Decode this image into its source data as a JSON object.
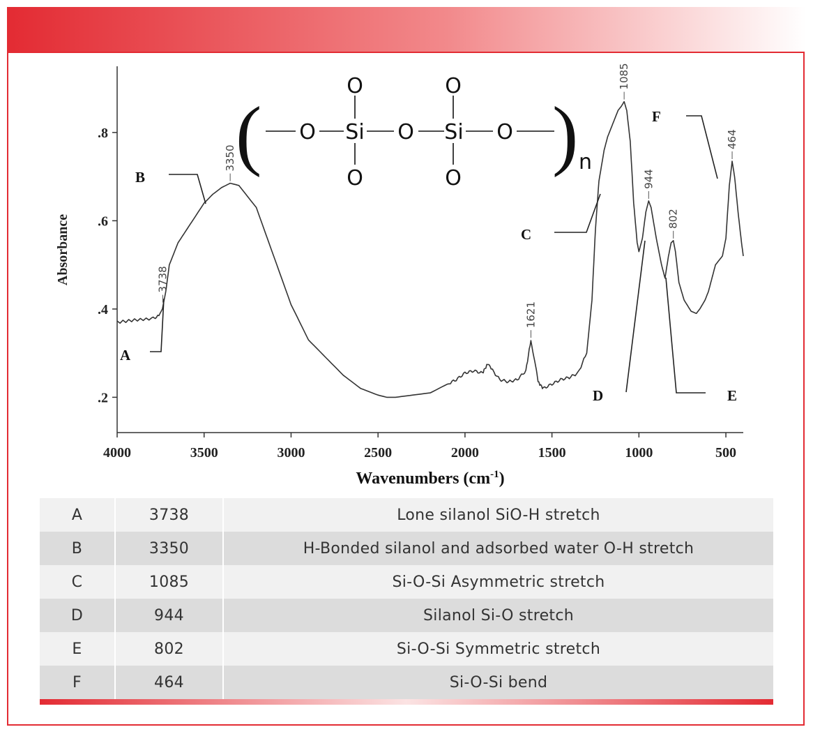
{
  "colors": {
    "accent": "#e32b33",
    "row_light": "#f1f1f1",
    "row_dark": "#dcdcdc",
    "text": "#333333"
  },
  "molecule": {
    "atoms": [
      "O",
      "Si",
      "O",
      "Si",
      "O"
    ],
    "top_atoms": [
      "O",
      "O"
    ],
    "bottom_atoms": [
      "O",
      "O"
    ],
    "subscript": "n"
  },
  "chart_data": {
    "type": "line",
    "xlabel": "Wavenumbers (cm",
    "xlabel_sup": "-1",
    "xlabel_close": ")",
    "ylabel": "Absorbance",
    "xlim": [
      4000,
      400
    ],
    "ylim": [
      0.12,
      0.95
    ],
    "x_reversed": true,
    "x_ticks": [
      4000,
      3500,
      3000,
      2500,
      2000,
      1500,
      1000,
      500
    ],
    "x_tick_labels": [
      "4000",
      "3500",
      "3000",
      "2500",
      "2000",
      "1500",
      "1000",
      "500"
    ],
    "y_ticks": [
      0.2,
      0.4,
      0.6,
      0.8
    ],
    "y_tick_labels": [
      ".2",
      ".4",
      ".6",
      ".8"
    ],
    "grid": false,
    "series": [
      {
        "x": [
          4000,
          3900,
          3800,
          3760,
          3740,
          3720,
          3700,
          3650,
          3600,
          3500,
          3450,
          3400,
          3350,
          3300,
          3200,
          3100,
          3000,
          2900,
          2800,
          2700,
          2600,
          2500,
          2450,
          2400,
          2300,
          2200,
          2100,
          2050,
          2000,
          1950,
          1900,
          1870,
          1850,
          1800,
          1750,
          1700,
          1650,
          1621,
          1600,
          1580,
          1550,
          1500,
          1450,
          1400,
          1350,
          1300,
          1270,
          1250,
          1230,
          1200,
          1180,
          1150,
          1120,
          1100,
          1085,
          1070,
          1050,
          1030,
          1010,
          1000,
          980,
          960,
          944,
          930,
          900,
          870,
          850,
          830,
          815,
          802,
          790,
          770,
          740,
          700,
          670,
          650,
          620,
          600,
          580,
          560,
          540,
          520,
          500,
          480,
          464,
          450,
          430,
          410,
          400
        ],
        "y": [
          0.37,
          0.375,
          0.378,
          0.385,
          0.4,
          0.44,
          0.5,
          0.55,
          0.58,
          0.64,
          0.66,
          0.675,
          0.685,
          0.68,
          0.63,
          0.52,
          0.41,
          0.33,
          0.29,
          0.25,
          0.22,
          0.205,
          0.2,
          0.2,
          0.205,
          0.21,
          0.23,
          0.24,
          0.255,
          0.26,
          0.255,
          0.275,
          0.265,
          0.24,
          0.235,
          0.24,
          0.26,
          0.33,
          0.285,
          0.235,
          0.22,
          0.23,
          0.24,
          0.245,
          0.255,
          0.3,
          0.42,
          0.58,
          0.69,
          0.76,
          0.79,
          0.82,
          0.85,
          0.86,
          0.87,
          0.85,
          0.78,
          0.64,
          0.55,
          0.53,
          0.56,
          0.62,
          0.645,
          0.63,
          0.56,
          0.5,
          0.47,
          0.52,
          0.55,
          0.555,
          0.53,
          0.46,
          0.42,
          0.395,
          0.39,
          0.4,
          0.42,
          0.44,
          0.47,
          0.5,
          0.51,
          0.52,
          0.56,
          0.68,
          0.735,
          0.7,
          0.62,
          0.55,
          0.52
        ]
      }
    ],
    "peaks": [
      {
        "x": 3738,
        "y": 0.41,
        "label": "3738"
      },
      {
        "x": 3350,
        "y": 0.685,
        "label": "3350"
      },
      {
        "x": 1621,
        "y": 0.33,
        "label": "1621"
      },
      {
        "x": 1085,
        "y": 0.87,
        "label": "1085"
      },
      {
        "x": 944,
        "y": 0.645,
        "label": "944"
      },
      {
        "x": 802,
        "y": 0.555,
        "label": "802"
      },
      {
        "x": 464,
        "y": 0.735,
        "label": "464"
      }
    ],
    "annotations": [
      "A",
      "B",
      "C",
      "D",
      "E",
      "F"
    ]
  },
  "table": {
    "rows": [
      {
        "letter": "A",
        "wavenumber": "3738",
        "assignment": "Lone silanol SiO-H stretch"
      },
      {
        "letter": "B",
        "wavenumber": "3350",
        "assignment": "H-Bonded silanol and adsorbed water O-H stretch"
      },
      {
        "letter": "C",
        "wavenumber": "1085",
        "assignment": "Si-O-Si Asymmetric stretch"
      },
      {
        "letter": "D",
        "wavenumber": "944",
        "assignment": "Silanol Si-O stretch"
      },
      {
        "letter": "E",
        "wavenumber": "802",
        "assignment": "Si-O-Si Symmetric stretch"
      },
      {
        "letter": "F",
        "wavenumber": "464",
        "assignment": "Si-O-Si bend"
      }
    ]
  }
}
